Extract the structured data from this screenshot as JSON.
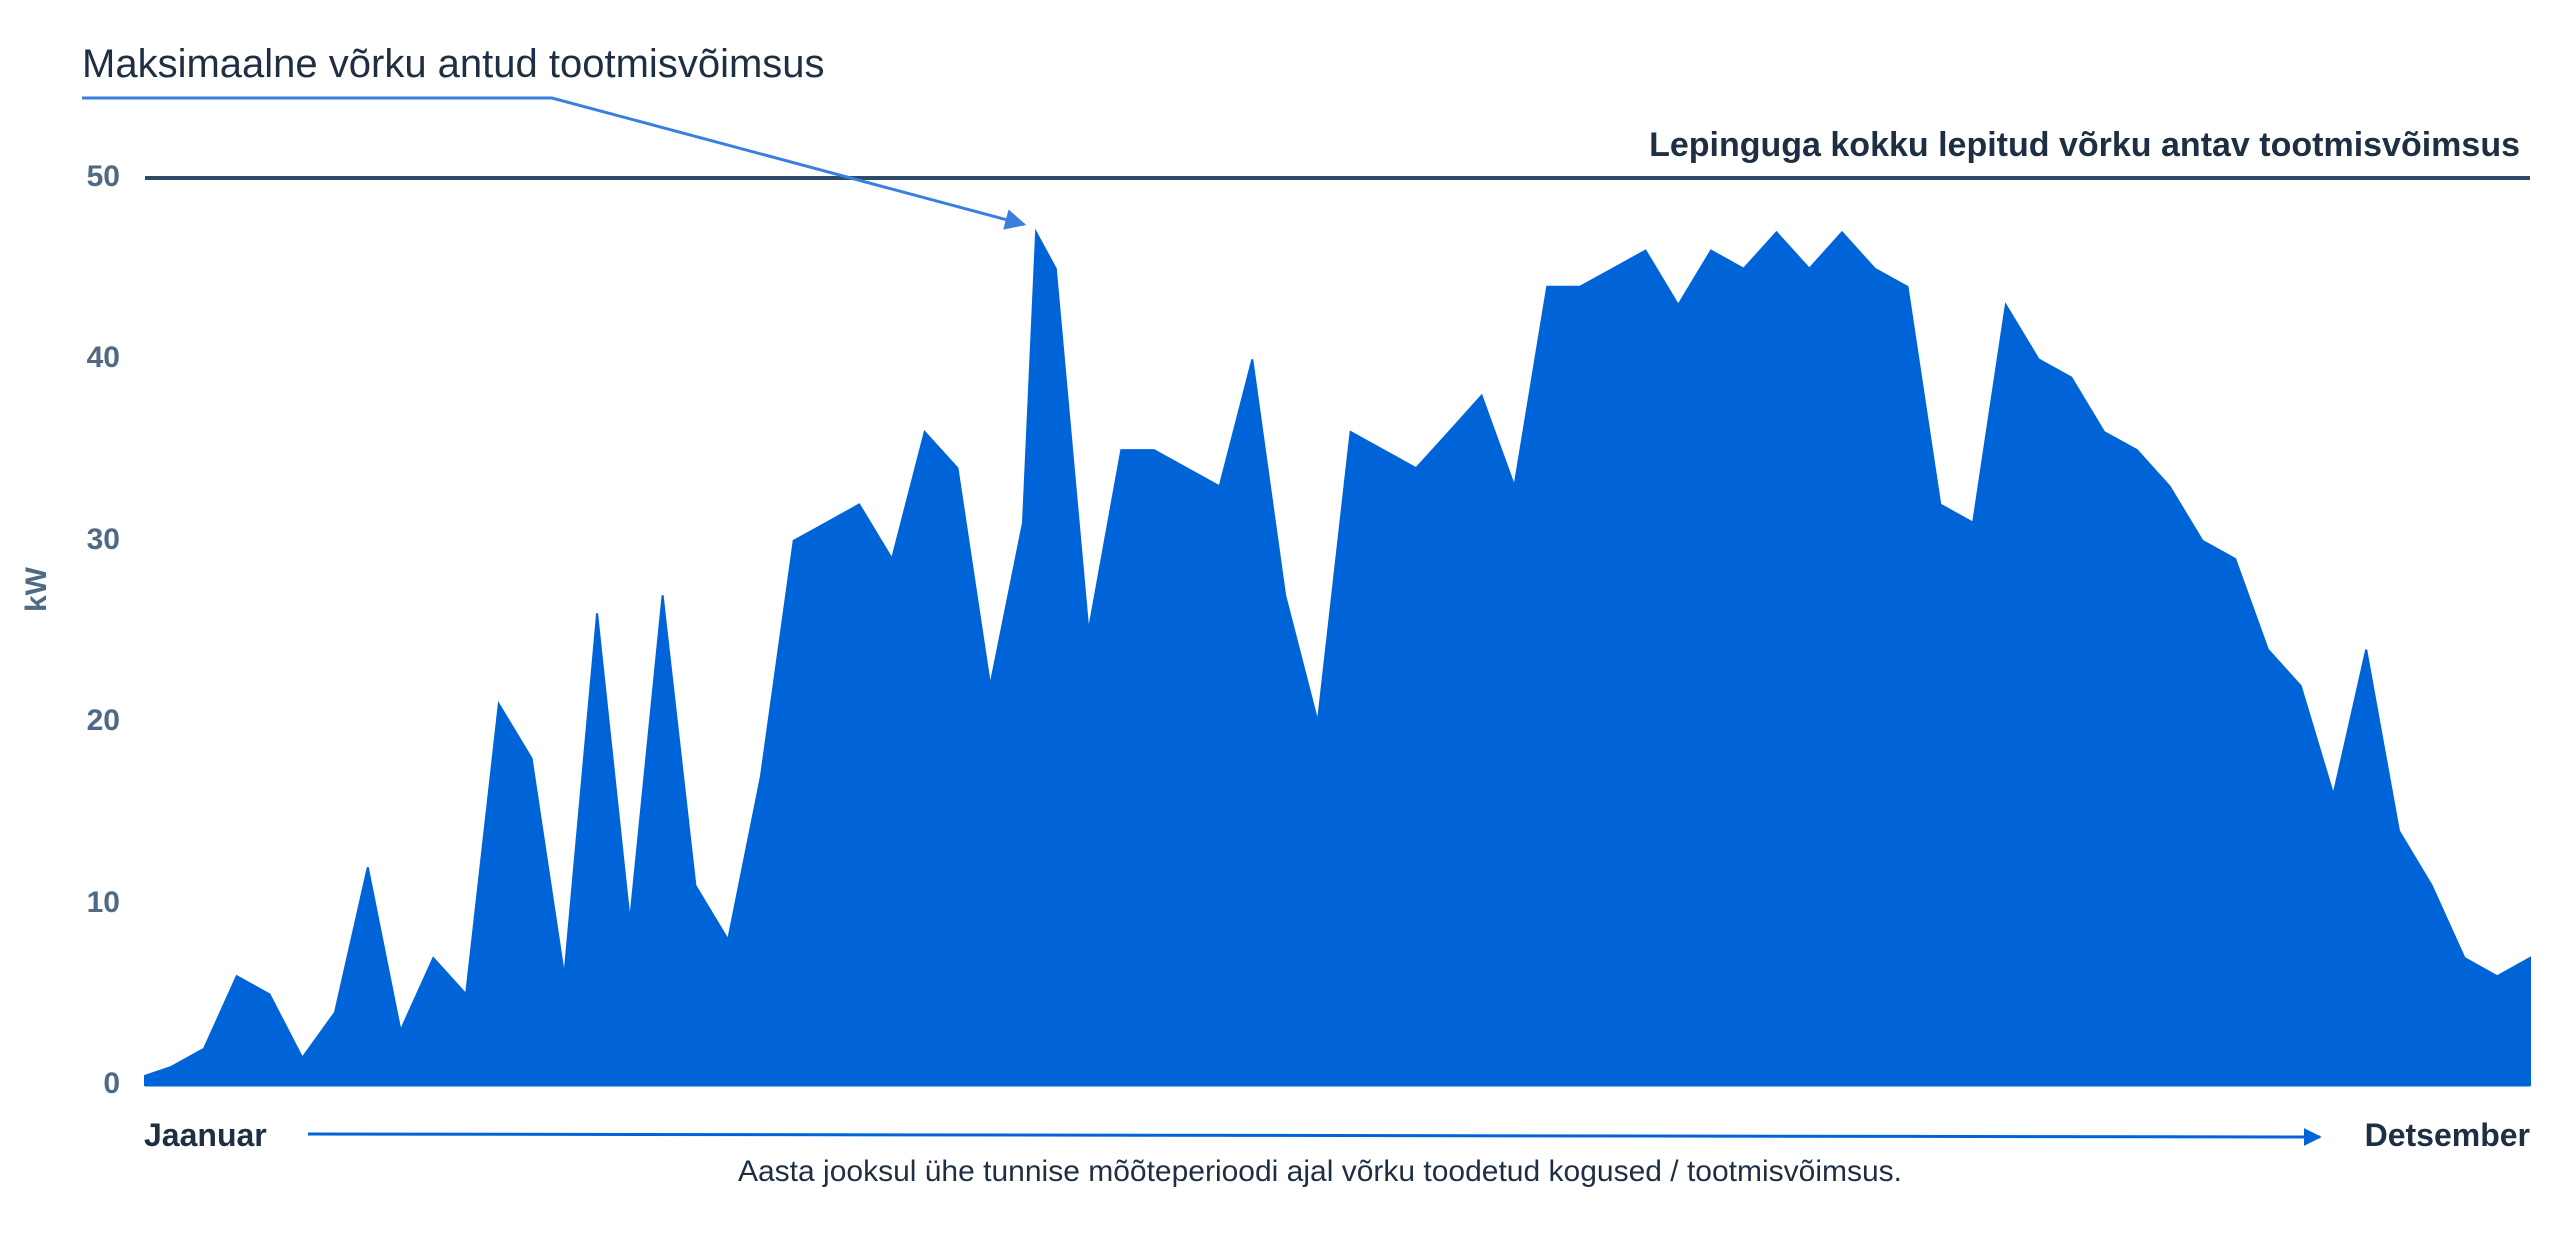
{
  "chart_data": {
    "type": "area",
    "title": "Maksimaalne võrku antud tootmisvõimsus",
    "ylabel": "kW",
    "ylim": [
      0,
      50
    ],
    "yticks": [
      0,
      10,
      20,
      30,
      40,
      50
    ],
    "x_start_label": "Jaanuar",
    "x_end_label": "Detsember",
    "caption": "Aasta jooksul ühe tunnise mõõteperioodi ajal võrku toodetud kogused / tootmisvõimsus.",
    "reference_line": {
      "label": "Lepinguga kokku lepitud võrku antav tootmisvõimsus",
      "value": 50,
      "color": "#2e4a6b"
    },
    "max_point": {
      "day": 137,
      "value": 47
    },
    "series": [
      {
        "color": "#0064d9",
        "x": [
          1,
          5,
          10,
          15,
          20,
          25,
          30,
          35,
          40,
          45,
          50,
          55,
          60,
          65,
          70,
          75,
          80,
          85,
          90,
          95,
          100,
          105,
          110,
          115,
          120,
          125,
          130,
          135,
          137,
          140,
          145,
          150,
          155,
          160,
          165,
          170,
          175,
          180,
          185,
          190,
          195,
          200,
          205,
          210,
          215,
          220,
          225,
          230,
          235,
          240,
          245,
          250,
          255,
          260,
          265,
          270,
          275,
          280,
          285,
          290,
          295,
          300,
          305,
          310,
          315,
          320,
          325,
          330,
          335,
          340,
          345,
          350,
          355,
          360,
          365
        ],
        "values": [
          0.5,
          1,
          2,
          6,
          5,
          1.5,
          4,
          12,
          3,
          7,
          5,
          21,
          18,
          6,
          26,
          9,
          27,
          11,
          8,
          17,
          30,
          31,
          32,
          29,
          36,
          34,
          22,
          31,
          47,
          45,
          25,
          35,
          35,
          34,
          33,
          40,
          27,
          20,
          36,
          35,
          34,
          36,
          38,
          33,
          44,
          44,
          45,
          46,
          43,
          46,
          45,
          47,
          45,
          47,
          45,
          44,
          32,
          31,
          43,
          40,
          39,
          36,
          35,
          33,
          30,
          29,
          24,
          22,
          16,
          24,
          14,
          11,
          7,
          6,
          7
        ]
      }
    ]
  }
}
